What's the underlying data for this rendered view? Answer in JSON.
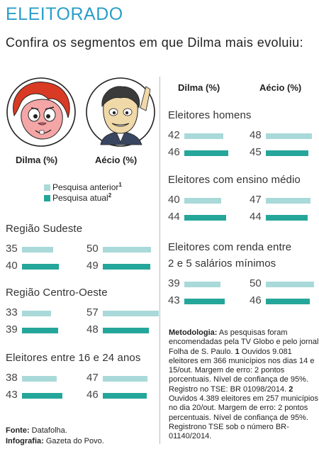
{
  "header": {
    "title": "ELEITORADO",
    "subtitle": "Confira os segmentos em que Dilma mais evoluiu:"
  },
  "candidates": {
    "dilma": "Dilma (%)",
    "aecio": "Aécio (%)"
  },
  "legend": {
    "previous": "Pesquisa anterior",
    "previous_ref": "1",
    "current": "Pesquisa atual",
    "current_ref": "2"
  },
  "colors": {
    "previous": "#a9d9d9",
    "current": "#25a69a",
    "title": "#2a9ec9"
  },
  "chart_data": {
    "type": "bar",
    "series": [
      {
        "name": "Pesquisa anterior"
      },
      {
        "name": "Pesquisa atual"
      }
    ],
    "segments": [
      {
        "name": "Região Sudeste",
        "dilma": [
          35,
          40
        ],
        "aecio": [
          50,
          49
        ]
      },
      {
        "name": "Região Centro-Oeste",
        "dilma": [
          33,
          39
        ],
        "aecio": [
          57,
          48
        ]
      },
      {
        "name": "Eleitores entre 16 e 24 anos",
        "dilma": [
          38,
          43
        ],
        "aecio": [
          47,
          46
        ]
      },
      {
        "name": "Eleitores homens",
        "dilma": [
          42,
          46
        ],
        "aecio": [
          48,
          45
        ]
      },
      {
        "name": "Eleitores com ensino médio",
        "dilma": [
          40,
          44
        ],
        "aecio": [
          47,
          44
        ]
      },
      {
        "name": "Eleitores com renda entre 2 e 5 salários mínimos",
        "name_lines": [
          "Eleitores com renda entre",
          "2 e 5 salários mínimos"
        ],
        "dilma": [
          39,
          43
        ],
        "aecio": [
          50,
          46
        ]
      }
    ]
  },
  "footer": {
    "source_label": "Fonte:",
    "source_value": "Datafolha.",
    "infographic_label": "Infografia:",
    "infographic_value": "Gazeta do Povo."
  },
  "methodology": {
    "label": "Metodologia:",
    "intro": "As pesquisas foram encomendadas pela TV Globo e pelo jornal Folha de S. Paulo.",
    "ref1": "1",
    "text1": "Ouvidos 9.081 eleitores em 366 municípios nos dias 14 e 15/out. Margem de erro: 2 pontos porcentuais. Nível de confiança de 95%. Registro no TSE: BR 01098/2014.",
    "ref2": "2",
    "text2": "Ouvidos 4.389 eleitores em 257 municípios no dia 20/out. Margem de erro: 2 pontos percentuais. Nível de confiança de 95%. Registrono TSE sob o número BR-01140/2014."
  }
}
